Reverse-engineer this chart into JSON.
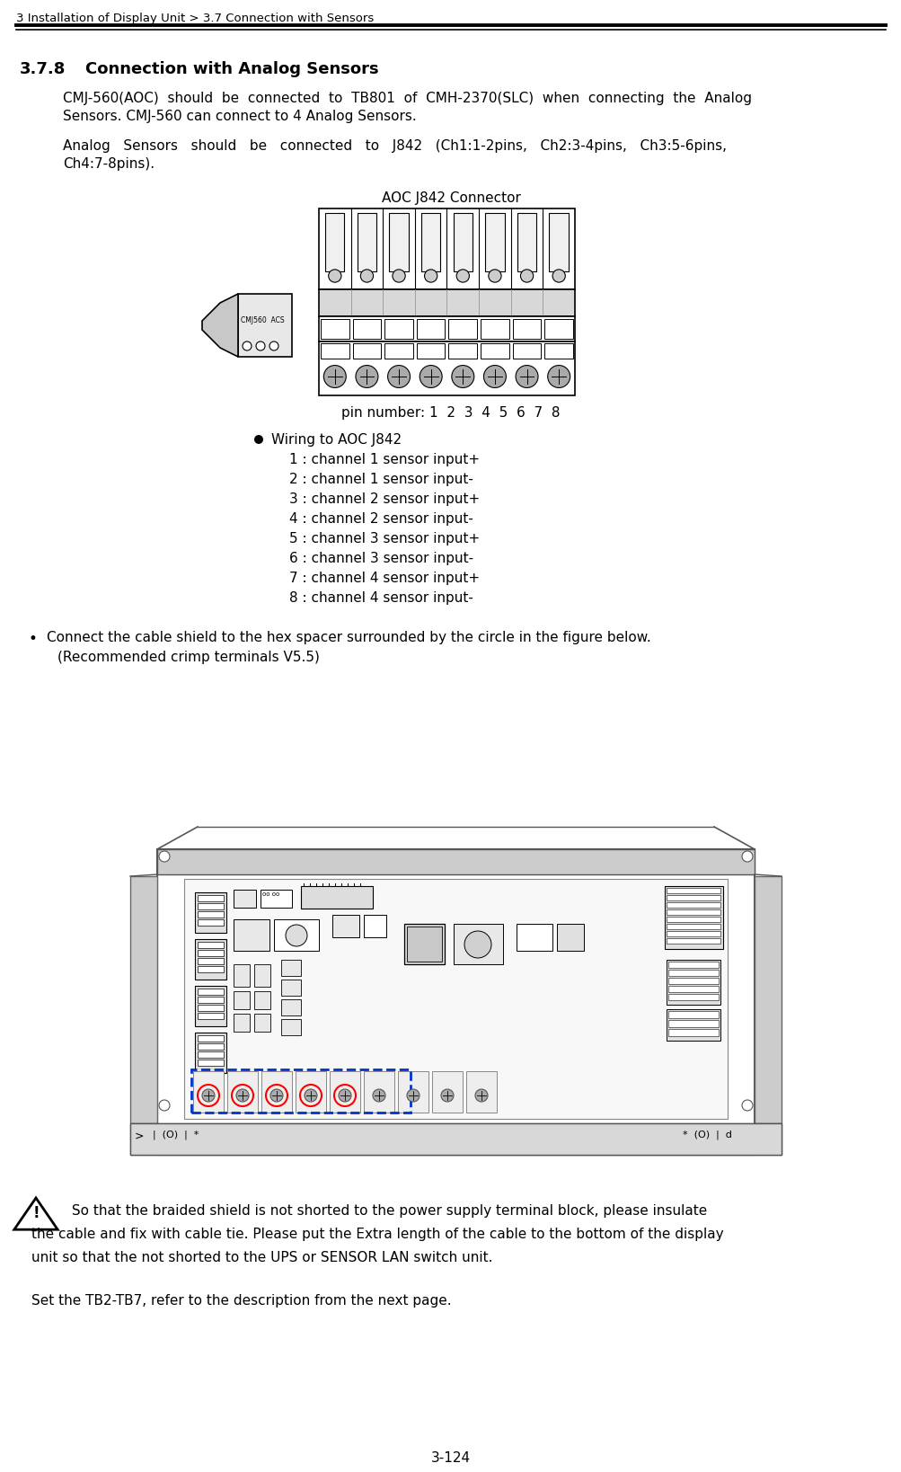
{
  "page_header": "3 Installation of Display Unit > 3.7 Connection with Sensors",
  "page_number": "3-124",
  "section_number": "3.7.8",
  "section_title": "Connection with Analog Sensors",
  "body1_line1": "CMJ-560(AOC)  should  be  connected  to  TB801  of  CMH-2370(SLC)  when  connecting  the  Analog",
  "body1_line2": "Sensors. CMJ-560 can connect to 4 Analog Sensors.",
  "body2_line1": "Analog   Sensors   should   be   connected   to   J842   (Ch1:1-2pins,   Ch2:3-4pins,   Ch3:5-6pins,",
  "body2_line2": "Ch4:7-8pins).",
  "connector_label": "AOC J842 Connector",
  "pin_label": "pin number: 1  2  3  4  5  6  7  8",
  "wiring_header": "Wiring to AOC J842",
  "wiring_items": [
    "1 : channel 1 sensor input+",
    "2 : channel 1 sensor input-",
    "3 : channel 2 sensor input+",
    "4 : channel 2 sensor input-",
    "5 : channel 3 sensor input+",
    "6 : channel 3 sensor input-",
    "7 : channel 4 sensor input+",
    "8 : channel 4 sensor input-"
  ],
  "bullet_line1": "Connect the cable shield to the hex spacer surrounded by the circle in the figure below.",
  "bullet_line2": "(Recommended crimp terminals V5.5)",
  "warn_line1": " So that the braided shield is not shorted to the power supply terminal block, please insulate",
  "warn_line2": "the cable and fix with cable tie. Please put the Extra length of the cable to the bottom of the display",
  "warn_line3": "unit so that the not shorted to the UPS or SENSOR LAN switch unit.",
  "final_text": "Set the TB2-TB7, refer to the description from the next page.",
  "bg_color": "#ffffff"
}
